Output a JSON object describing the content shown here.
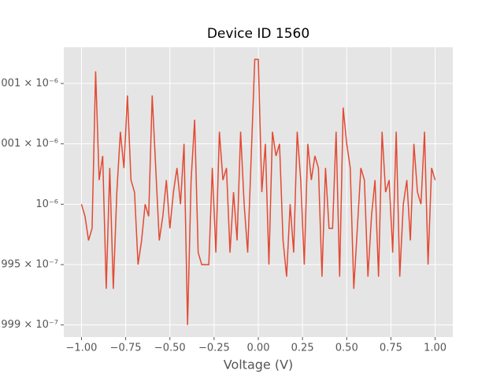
{
  "chart_data": {
    "type": "line",
    "title": "Device ID 1560",
    "x_label": "Voltage (V)",
    "x": [
      -1,
      -0.98,
      -0.96,
      -0.94,
      -0.92,
      -0.9,
      -0.88,
      -0.86,
      -0.84,
      -0.82,
      -0.8,
      -0.78,
      -0.76,
      -0.74,
      -0.72,
      -0.7,
      -0.68,
      -0.66,
      -0.64,
      -0.62,
      -0.6,
      -0.58,
      -0.56,
      -0.54,
      -0.52,
      -0.5,
      -0.48,
      -0.46,
      -0.44,
      -0.42,
      -0.4,
      -0.38,
      -0.36,
      -0.34,
      -0.32,
      -0.3,
      -0.28,
      -0.26,
      -0.24,
      -0.22,
      -0.2,
      -0.18,
      -0.16,
      -0.14,
      -0.12,
      -0.1,
      -0.08,
      -0.06,
      -0.04,
      -0.02,
      0,
      0.02,
      0.04,
      0.06,
      0.08,
      0.1,
      0.12,
      0.14,
      0.16,
      0.18,
      0.2,
      0.22,
      0.24,
      0.26,
      0.28,
      0.3,
      0.32,
      0.34,
      0.36,
      0.38,
      0.4,
      0.42,
      0.44,
      0.46,
      0.48,
      0.5,
      0.52,
      0.54,
      0.56,
      0.58,
      0.6,
      0.62,
      0.64,
      0.66,
      0.68,
      0.7,
      0.72,
      0.74,
      0.76,
      0.78,
      0.8,
      0.82,
      0.84,
      0.86,
      0.88,
      0.9,
      0.92,
      0.94,
      0.96,
      0.98,
      1
    ],
    "series": [
      {
        "color": "#E24A33",
        "values": [
          1e-06,
          9.999999e-07,
          9.999997e-07,
          9.999998e-07,
          1.0000011e-06,
          1.0000002e-06,
          1.0000004e-06,
          9.999993e-07,
          1.0000003e-06,
          9.999993e-07,
          1.0000001e-06,
          1.0000006e-06,
          1.0000003e-06,
          1.0000009e-06,
          1.0000002e-06,
          1.0000001e-06,
          9.999995e-07,
          9.999997e-07,
          1e-06,
          9.999999e-07,
          1.0000009e-06,
          1.0000003e-06,
          9.999997e-07,
          9.999999e-07,
          1.0000002e-06,
          9.999998e-07,
          1.0000001e-06,
          1.0000003e-06,
          1e-06,
          1.0000005e-06,
          9.99999e-07,
          1.0000002e-06,
          1.0000007e-06,
          9.999996e-07,
          9.999995e-07,
          9.999995e-07,
          9.999995e-07,
          1.0000003e-06,
          9.999996e-07,
          1.0000006e-06,
          1.0000002e-06,
          1.0000003e-06,
          9.999996e-07,
          1.0000001e-06,
          9.999997e-07,
          1.0000006e-06,
          1e-06,
          9.999996e-07,
          1.0000004e-06,
          1.0000012e-06,
          1.0000012e-06,
          1.0000001e-06,
          1.0000005e-06,
          9.999995e-07,
          1.0000006e-06,
          1.0000004e-06,
          1.0000005e-06,
          9.999997e-07,
          9.999994e-07,
          1e-06,
          9.999996e-07,
          1.0000006e-06,
          1.0000002e-06,
          9.999995e-07,
          1.0000005e-06,
          1.0000002e-06,
          1.0000004e-06,
          1.0000003e-06,
          9.999994e-07,
          1.0000003e-06,
          9.999998e-07,
          9.999998e-07,
          1.0000006e-06,
          9.999994e-07,
          1.0000008e-06,
          1.0000005e-06,
          1.0000003e-06,
          9.999993e-07,
          9.999998e-07,
          1.0000003e-06,
          1.0000002e-06,
          9.999994e-07,
          9.999999e-07,
          1.0000002e-06,
          9.999994e-07,
          1.0000006e-06,
          1.0000001e-06,
          1.0000002e-06,
          9.999996e-07,
          1.0000006e-06,
          9.999994e-07,
          1e-06,
          1.0000002e-06,
          9.999997e-07,
          1.0000005e-06,
          1.0000001e-06,
          1e-06,
          1.0000006e-06,
          9.999995e-07,
          1.0000003e-06,
          1.0000002e-06
        ]
      }
    ],
    "xlim": [
      -1.1,
      1.1
    ],
    "xticks": [
      {
        "value": -1,
        "label": "−1.00"
      },
      {
        "value": -0.75,
        "label": "−0.75"
      },
      {
        "value": -0.5,
        "label": "−0.50"
      },
      {
        "value": -0.25,
        "label": "−0.25"
      },
      {
        "value": 0,
        "label": "0.00"
      },
      {
        "value": 0.25,
        "label": "0.25"
      },
      {
        "value": 0.5,
        "label": "0.50"
      },
      {
        "value": 0.75,
        "label": "0.75"
      },
      {
        "value": 1,
        "label": "1.00"
      }
    ],
    "ylim": [
      9.999989e-07,
      1.0000013e-06
    ],
    "yticks": [
      {
        "value": 9.99999e-07,
        "label": "999 × 10⁻⁷"
      },
      {
        "value": 9.999995e-07,
        "label": "995 × 10⁻⁷"
      },
      {
        "value": 1e-06,
        "label": "10⁻⁶"
      },
      {
        "value": 1.0000005e-06,
        "label": "001 × 10⁻⁶"
      },
      {
        "value": 1.000001e-06,
        "label": "001 × 10⁻⁶"
      }
    ],
    "grid": true
  }
}
